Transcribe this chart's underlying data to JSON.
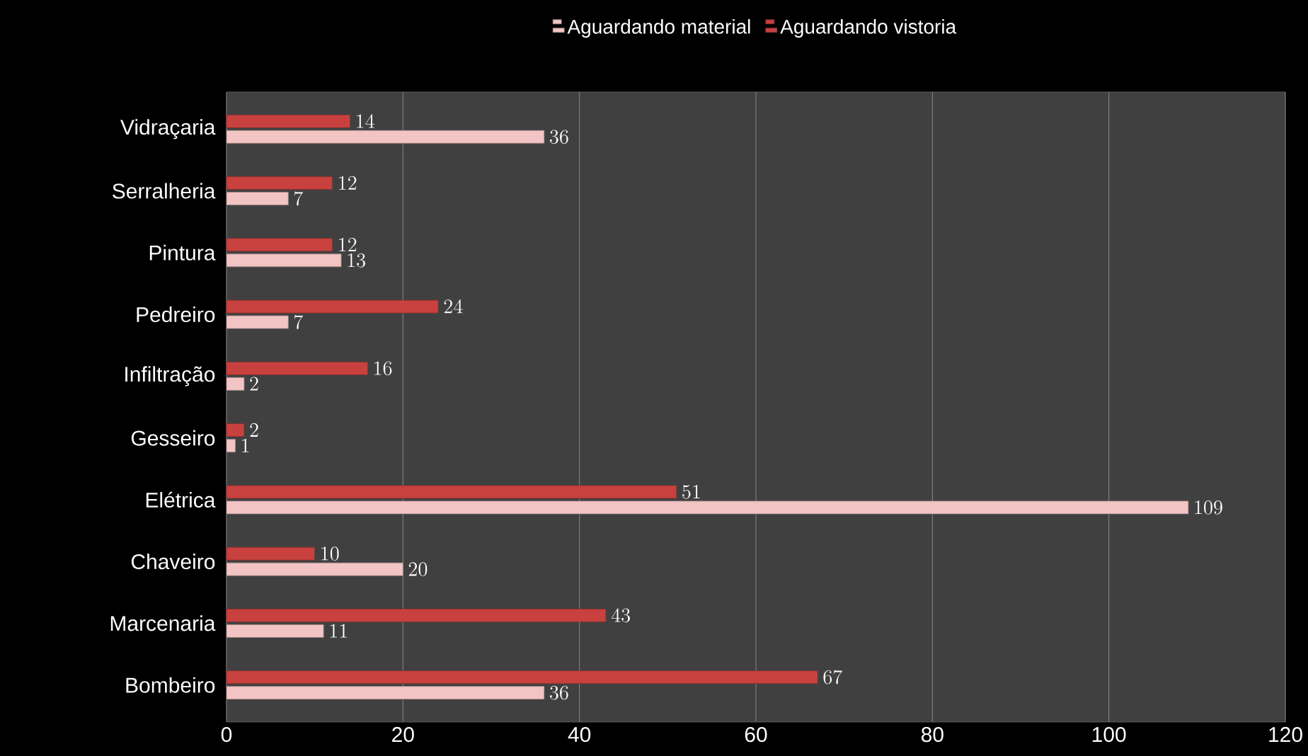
{
  "chart_data": {
    "type": "bar",
    "orientation": "horizontal",
    "categories": [
      "Vidraçaria",
      "Serralheria",
      "Pintura",
      "Pedreiro",
      "Infiltração",
      "Gesseiro",
      "Elétrica",
      "Chaveiro",
      "Marcenaria",
      "Bombeiro"
    ],
    "series": [
      {
        "name": "Aguardando material",
        "color": "#f2c4c4",
        "values": [
          36,
          7,
          13,
          7,
          2,
          1,
          109,
          20,
          11,
          36
        ]
      },
      {
        "name": "Aguardando vistoria",
        "color": "#c8413f",
        "values": [
          14,
          12,
          12,
          24,
          16,
          2,
          51,
          10,
          43,
          67
        ]
      }
    ],
    "xlim": [
      0,
      120
    ],
    "xticks": [
      0,
      20,
      40,
      60,
      80,
      100,
      120
    ],
    "grid": "x",
    "legend": "top",
    "data_labels": true
  }
}
